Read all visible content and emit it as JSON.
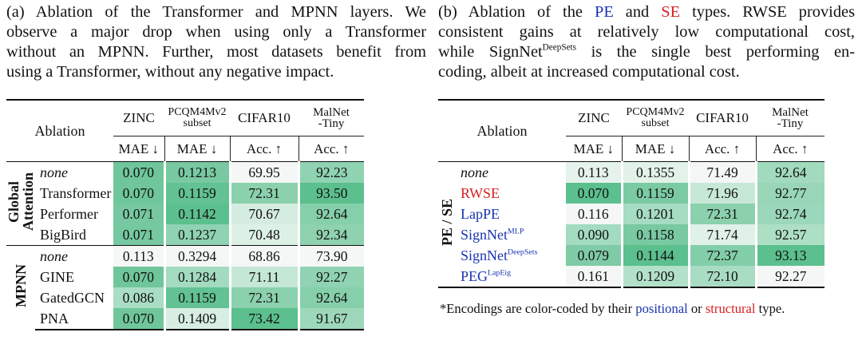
{
  "panel_a": {
    "caption_lines": [
      "(a) Ablation of the Transformer and MPNN layers. We",
      "observe a major drop when using only a Transformer",
      "without an MPNN. Further, most datasets benefit from",
      "using a Transformer, without any negative impact."
    ],
    "table": {
      "ablation_header": "Ablation",
      "columns": [
        {
          "name": "ZINC",
          "metric": "MAE ↓"
        },
        {
          "name_line1": "PCQM4Mv2",
          "name_line2": "subset",
          "metric": "MAE ↓"
        },
        {
          "name": "CIFAR10",
          "metric": "Acc. ↑"
        },
        {
          "name_line1": "MalNet",
          "name_line2": "-Tiny",
          "metric": "Acc. ↑"
        }
      ],
      "groups": [
        {
          "label_line1": "Global",
          "label_line2": "Attention",
          "rows": [
            {
              "name": "none",
              "values": [
                "0.070",
                "0.1213",
                "69.95",
                "92.23"
              ],
              "shades": [
                "#6fc69b",
                "#78c9a1",
                "#f4f7f5",
                "#8fd3b2"
              ]
            },
            {
              "name": "Transformer",
              "values": [
                "0.070",
                "0.1159",
                "72.31",
                "93.50"
              ],
              "shades": [
                "#6fc69b",
                "#62c294",
                "#8bd1ae",
                "#5bbf8e"
              ]
            },
            {
              "name": "Performer",
              "values": [
                "0.071",
                "0.1142",
                "70.67",
                "92.64"
              ],
              "shades": [
                "#75c8a0",
                "#5bbf8e",
                "#d5ece0",
                "#86cfab"
              ]
            },
            {
              "name": "BigBird",
              "values": [
                "0.071",
                "0.1237",
                "70.48",
                "92.34"
              ],
              "shades": [
                "#75c8a0",
                "#8fd3b2",
                "#ddf0e6",
                "#8ed2b0"
              ]
            }
          ]
        },
        {
          "label_line1": "MPNN",
          "label_line2": "",
          "rows": [
            {
              "name": "none",
              "values": [
                "0.113",
                "0.3294",
                "68.86",
                "73.90"
              ],
              "shades": [
                "#f4f7f5",
                "#f4f7f5",
                "#f4f7f5",
                "#f4f7f5"
              ]
            },
            {
              "name": "GINE",
              "values": [
                "0.070",
                "0.1284",
                "71.11",
                "92.27"
              ],
              "shades": [
                "#6fc69b",
                "#a3dbc0",
                "#c5e7d5",
                "#8fd3b2"
              ]
            },
            {
              "name": "GatedGCN",
              "values": [
                "0.086",
                "0.1159",
                "72.31",
                "92.64"
              ],
              "shades": [
                "#a9ddc4",
                "#62c294",
                "#8bd1ae",
                "#86cfab"
              ]
            },
            {
              "name": "PNA",
              "values": [
                "0.070",
                "0.1409",
                "73.42",
                "91.67"
              ],
              "shades": [
                "#6fc69b",
                "#d8eee2",
                "#5bbf8e",
                "#9dd8bb"
              ]
            }
          ]
        }
      ]
    }
  },
  "panel_b": {
    "caption_lines": [
      {
        "parts": [
          "(b) Ablation of the ",
          "PE",
          " and ",
          "SE",
          " types. RWSE provides"
        ]
      },
      {
        "text": "consistent gains at relatively low computational cost,"
      },
      {
        "parts": [
          "while SignNet",
          "DeepSets",
          " is the single best performing en-"
        ]
      },
      {
        "text": "coding, albeit at increased computational cost."
      }
    ],
    "table": {
      "ablation_header": "Ablation",
      "columns": [
        {
          "name": "ZINC",
          "metric": "MAE ↓"
        },
        {
          "name_line1": "PCQM4Mv2",
          "name_line2": "subset",
          "metric": "MAE ↓"
        },
        {
          "name": "CIFAR10",
          "metric": "Acc. ↑"
        },
        {
          "name_line1": "MalNet",
          "name_line2": "-Tiny",
          "metric": "Acc. ↑"
        }
      ],
      "group_label": "PE / SE",
      "rows": [
        {
          "name": "none",
          "sup": "",
          "type": "none",
          "values": [
            "0.113",
            "0.1355",
            "71.49",
            "92.64"
          ],
          "shades": [
            "#e6f3ec",
            "#e2f2e9",
            "#f4f7f5",
            "#a2dabd"
          ]
        },
        {
          "name": "RWSE",
          "sup": "",
          "type": "structural",
          "values": [
            "0.070",
            "0.1159",
            "71.96",
            "92.77"
          ],
          "shades": [
            "#5bbf8e",
            "#7acaa3",
            "#c7e8d6",
            "#98d6b7"
          ]
        },
        {
          "name": "LapPE",
          "sup": "",
          "type": "positional",
          "values": [
            "0.116",
            "0.1201",
            "72.31",
            "92.74"
          ],
          "shades": [
            "#f4f7f5",
            "#a6dcc2",
            "#8bd1ae",
            "#9bd7ba"
          ]
        },
        {
          "name": "SignNet",
          "sup": "MLP",
          "type": "positional",
          "values": [
            "0.090",
            "0.1158",
            "71.74",
            "92.57"
          ],
          "shades": [
            "#a3dbc0",
            "#79c9a2",
            "#e0f1e7",
            "#add fc5"
          ]
        },
        {
          "name": "SignNet",
          "sup": "DeepSets",
          "type": "positional",
          "values": [
            "0.079",
            "0.1144",
            "72.37",
            "93.13"
          ],
          "shades": [
            "#7fcba6",
            "#5bbf8e",
            "#82cea9",
            "#5bbf8e"
          ]
        },
        {
          "name": "PEG",
          "sup": "LapEig",
          "type": "positional",
          "values": [
            "0.161",
            "0.1209",
            "72.10",
            "92.27"
          ],
          "shades": [
            "#f4f7f5",
            "#b2e0c9",
            "#a9ddc3",
            "#f4f7f5"
          ]
        }
      ],
      "footnote_parts": [
        "*Encodings are color-coded by their ",
        "positional",
        " or ",
        "structural",
        " type."
      ]
    }
  },
  "colors": {
    "positional": "#1a33b0",
    "structural": "#d61f1f"
  }
}
